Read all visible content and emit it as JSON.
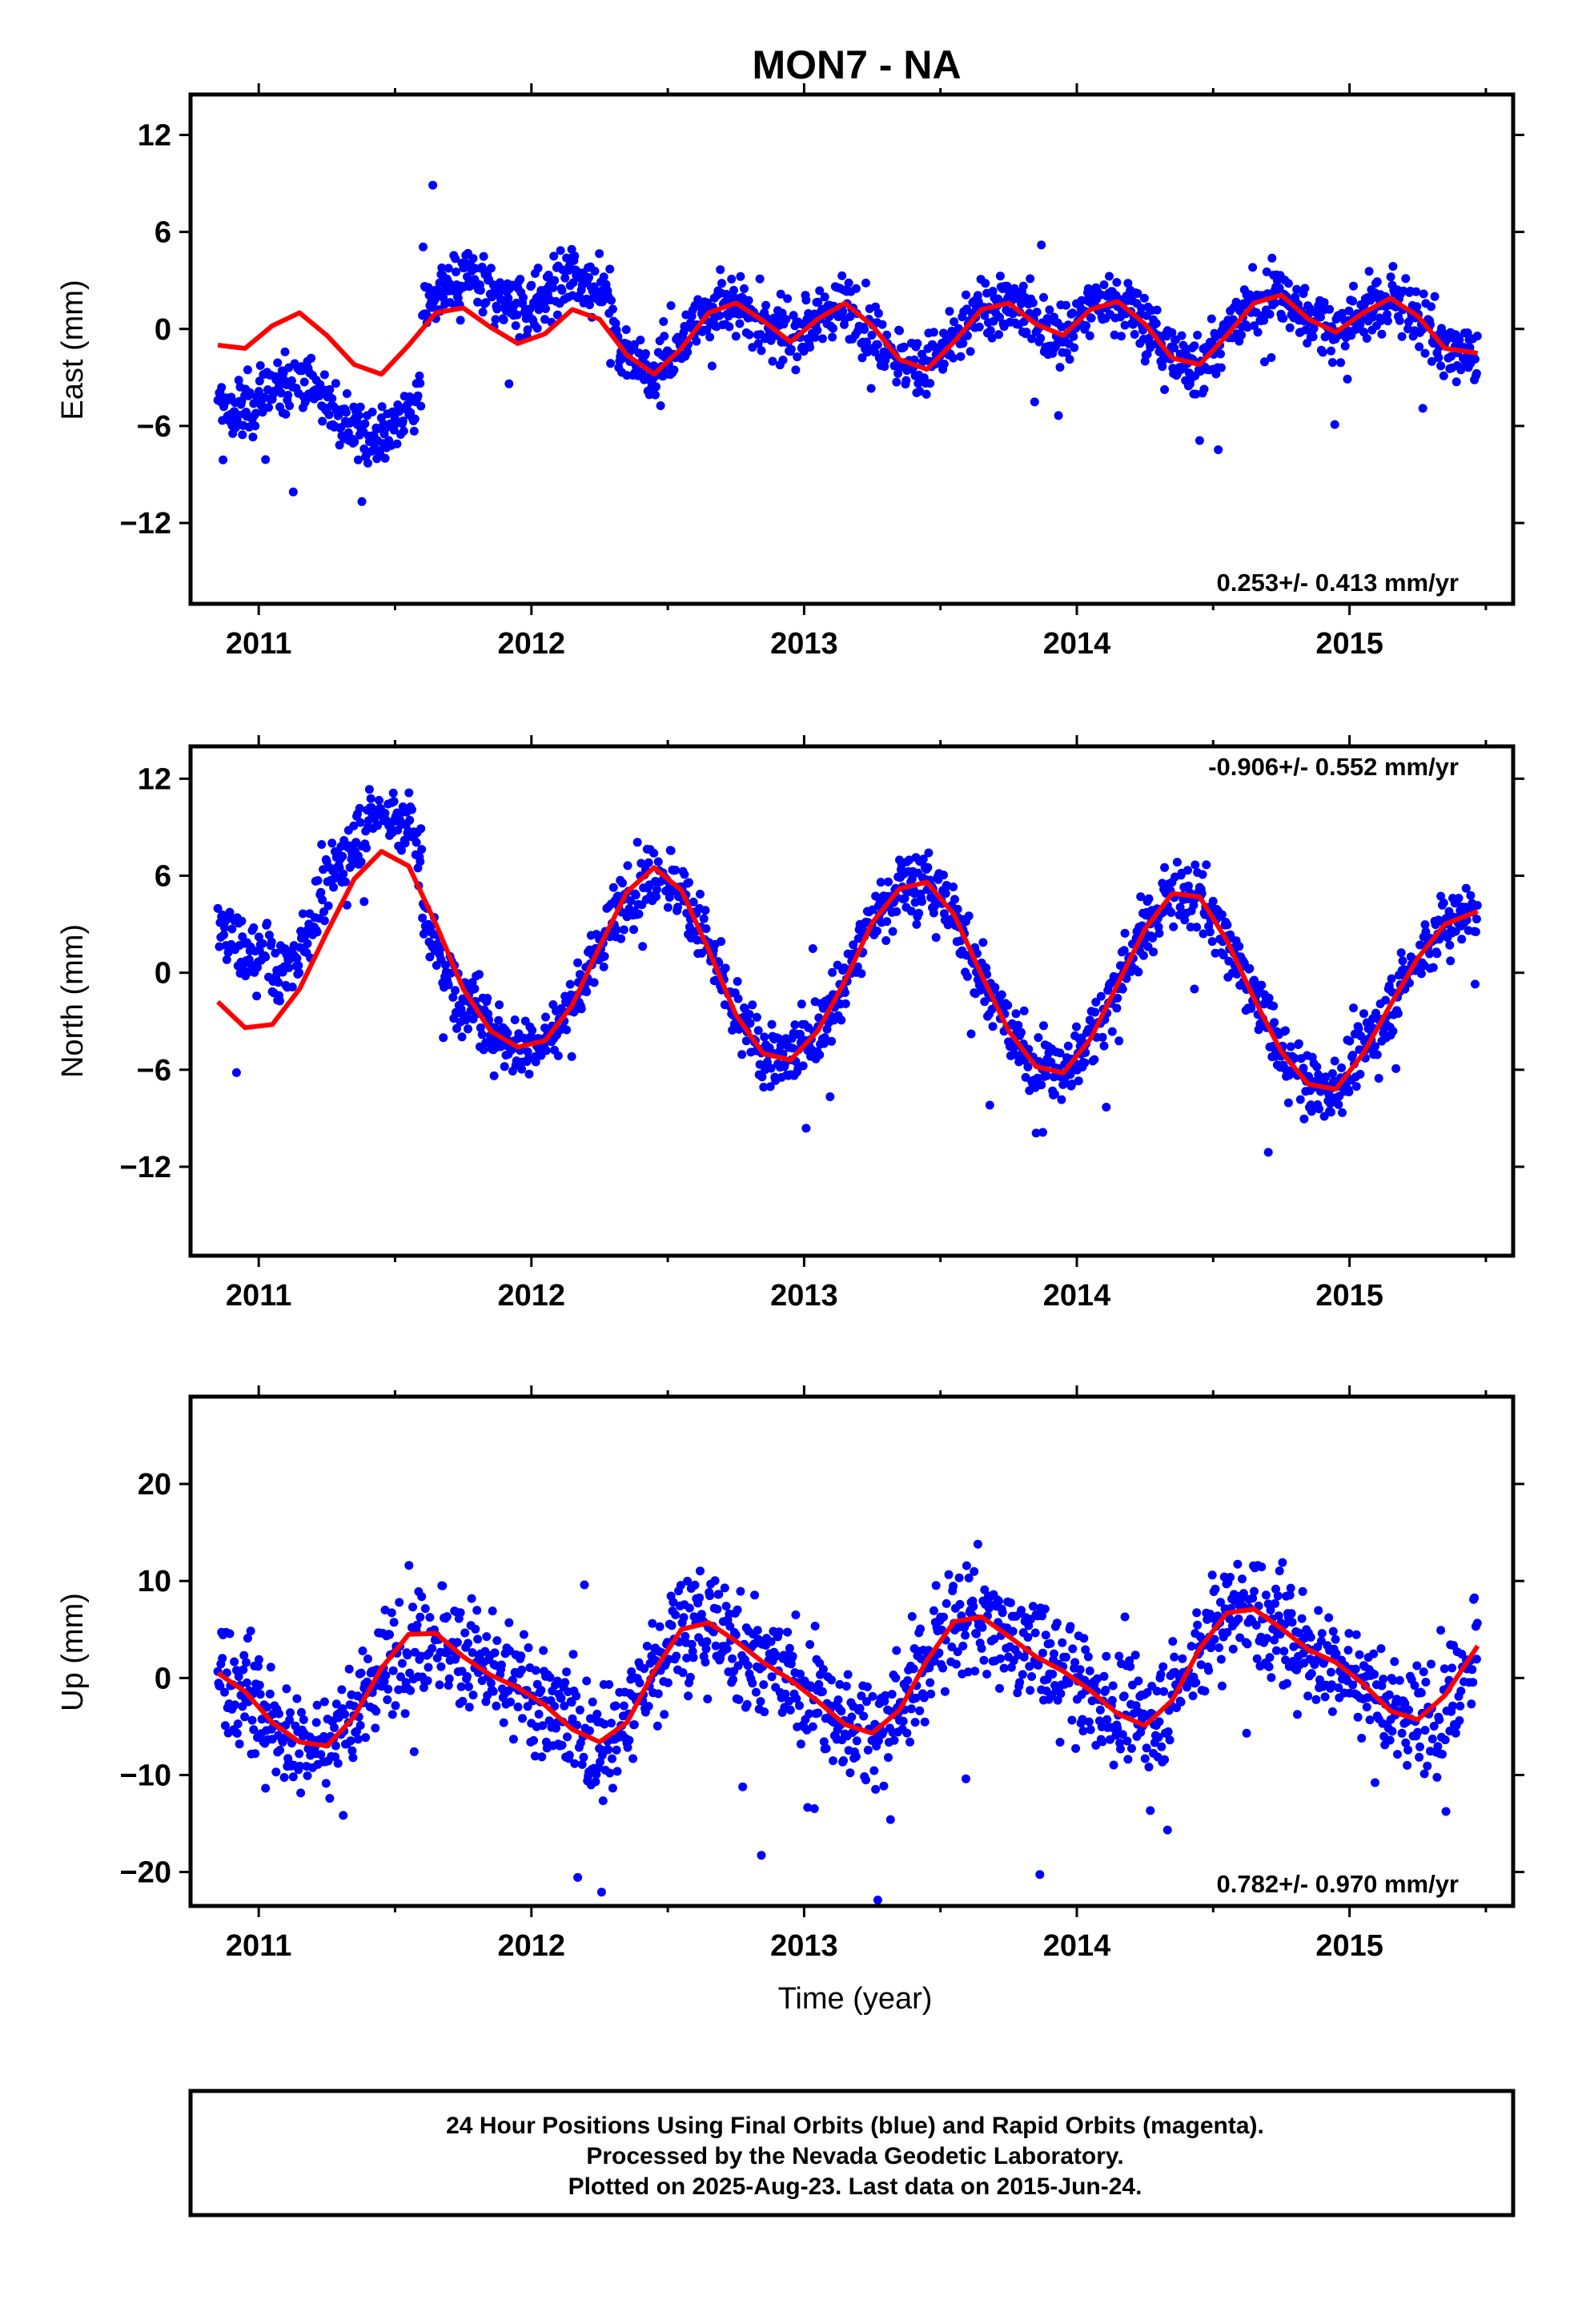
{
  "title": "MON7 - NA",
  "xlabel": "Time (year)",
  "colors": {
    "points": "#0000ff",
    "fit": "#ff0000"
  },
  "footer": {
    "line1": "24 Hour Positions Using Final Orbits (blue) and Rapid Orbits (magenta).",
    "line2": "Processed by the Nevada Geodetic Laboratory.",
    "line3": "Plotted on 2025-Aug-23. Last data on 2015-Jun-24."
  },
  "chart_data": [
    {
      "type": "scatter",
      "name": "east",
      "ylabel": "East (mm)",
      "rate_text": "0.253+/- 0.413 mm/yr",
      "rate_position": "bottom-right",
      "xlim": [
        2010.75,
        2015.6
      ],
      "ylim": [
        -17,
        14.5
      ],
      "xticks": [
        2011,
        2012,
        2013,
        2014,
        2015
      ],
      "yticks": [
        -12,
        -6,
        0,
        6,
        12
      ],
      "fit_curve": {
        "x": [
          2010.85,
          2010.95,
          2011.05,
          2011.15,
          2011.25,
          2011.35,
          2011.45,
          2011.55,
          2011.65,
          2011.75,
          2011.85,
          2011.95,
          2012.05,
          2012.15,
          2012.25,
          2012.35,
          2012.45,
          2012.55,
          2012.65,
          2012.75,
          2012.85,
          2012.95,
          2013.05,
          2013.15,
          2013.25,
          2013.35,
          2013.45,
          2013.55,
          2013.65,
          2013.75,
          2013.85,
          2013.95,
          2014.05,
          2014.15,
          2014.25,
          2014.35,
          2014.45,
          2014.55,
          2014.65,
          2014.75,
          2014.85,
          2014.95,
          2015.05,
          2015.15,
          2015.25,
          2015.35,
          2015.47
        ],
        "y": [
          -1.0,
          -1.2,
          0.2,
          1.0,
          -0.4,
          -2.2,
          -2.8,
          -1.0,
          1.0,
          1.3,
          0.1,
          -0.9,
          -0.3,
          1.2,
          0.6,
          -1.6,
          -2.8,
          -1.2,
          1.0,
          1.6,
          0.5,
          -0.8,
          0.6,
          1.6,
          0.2,
          -1.9,
          -2.5,
          -0.8,
          1.2,
          1.6,
          0.3,
          -0.4,
          1.2,
          1.7,
          0.3,
          -1.8,
          -2.2,
          -0.4,
          1.6,
          2.1,
          0.6,
          -0.2,
          1.0,
          1.9,
          0.8,
          -1.2,
          -1.5
        ]
      }
    },
    {
      "type": "scatter",
      "name": "north",
      "ylabel": "North (mm)",
      "rate_text": "-0.906+/- 0.552 mm/yr",
      "rate_position": "top-right",
      "xlim": [
        2010.75,
        2015.6
      ],
      "ylim": [
        -17.5,
        14
      ],
      "xticks": [
        2011,
        2012,
        2013,
        2014,
        2015
      ],
      "yticks": [
        -12,
        -6,
        0,
        6,
        12
      ],
      "fit_curve": {
        "x": [
          2010.85,
          2010.95,
          2011.05,
          2011.15,
          2011.25,
          2011.35,
          2011.45,
          2011.55,
          2011.65,
          2011.75,
          2011.85,
          2011.95,
          2012.05,
          2012.15,
          2012.25,
          2012.35,
          2012.45,
          2012.55,
          2012.65,
          2012.75,
          2012.85,
          2012.95,
          2013.05,
          2013.15,
          2013.25,
          2013.35,
          2013.45,
          2013.55,
          2013.65,
          2013.75,
          2013.85,
          2013.95,
          2014.05,
          2014.15,
          2014.25,
          2014.35,
          2014.45,
          2014.55,
          2014.65,
          2014.75,
          2014.85,
          2014.95,
          2015.05,
          2015.15,
          2015.25,
          2015.35,
          2015.47
        ],
        "y": [
          -1.8,
          -3.4,
          -3.2,
          -1.0,
          2.5,
          5.8,
          7.5,
          6.6,
          3.0,
          -1.0,
          -3.6,
          -4.6,
          -4.2,
          -2.0,
          1.6,
          5.0,
          6.5,
          5.1,
          1.4,
          -2.6,
          -5.0,
          -5.4,
          -3.6,
          -0.5,
          3.1,
          5.2,
          5.6,
          3.6,
          -0.1,
          -3.6,
          -5.8,
          -6.2,
          -4.1,
          -0.7,
          2.7,
          4.9,
          4.7,
          2.0,
          -1.6,
          -4.9,
          -6.9,
          -7.2,
          -5.0,
          -2.0,
          0.9,
          3.0,
          3.8
        ]
      }
    },
    {
      "type": "scatter",
      "name": "up",
      "ylabel": "Up (mm)",
      "rate_text": "0.782+/- 0.970 mm/yr",
      "rate_position": "bottom-right",
      "xlim": [
        2010.75,
        2015.6
      ],
      "ylim": [
        -23.5,
        29
      ],
      "xticks": [
        2011,
        2012,
        2013,
        2014,
        2015
      ],
      "yticks": [
        -20,
        -10,
        0,
        10,
        20
      ],
      "fit_curve": {
        "x": [
          2010.85,
          2010.95,
          2011.05,
          2011.15,
          2011.25,
          2011.35,
          2011.45,
          2011.55,
          2011.65,
          2011.75,
          2011.85,
          2011.95,
          2012.05,
          2012.15,
          2012.25,
          2012.35,
          2012.45,
          2012.55,
          2012.65,
          2012.75,
          2012.85,
          2012.95,
          2013.05,
          2013.15,
          2013.25,
          2013.35,
          2013.45,
          2013.55,
          2013.65,
          2013.75,
          2013.85,
          2013.95,
          2014.05,
          2014.15,
          2014.25,
          2014.35,
          2014.45,
          2014.55,
          2014.65,
          2014.75,
          2014.85,
          2014.95,
          2015.05,
          2015.15,
          2015.25,
          2015.35,
          2015.47
        ],
        "y": [
          0.5,
          -1.4,
          -4.6,
          -6.6,
          -7.0,
          -4.0,
          1.0,
          4.5,
          4.6,
          2.2,
          0.3,
          -1.0,
          -2.8,
          -5.3,
          -6.6,
          -4.6,
          0.7,
          5.0,
          5.7,
          3.8,
          1.6,
          -0.2,
          -2.4,
          -4.8,
          -5.7,
          -3.3,
          1.8,
          5.8,
          6.3,
          4.3,
          2.2,
          0.7,
          -1.3,
          -3.7,
          -4.9,
          -2.3,
          3.0,
          6.7,
          7.1,
          5.1,
          2.9,
          1.6,
          -0.6,
          -3.4,
          -4.3,
          -1.8,
          3.3
        ]
      }
    }
  ]
}
